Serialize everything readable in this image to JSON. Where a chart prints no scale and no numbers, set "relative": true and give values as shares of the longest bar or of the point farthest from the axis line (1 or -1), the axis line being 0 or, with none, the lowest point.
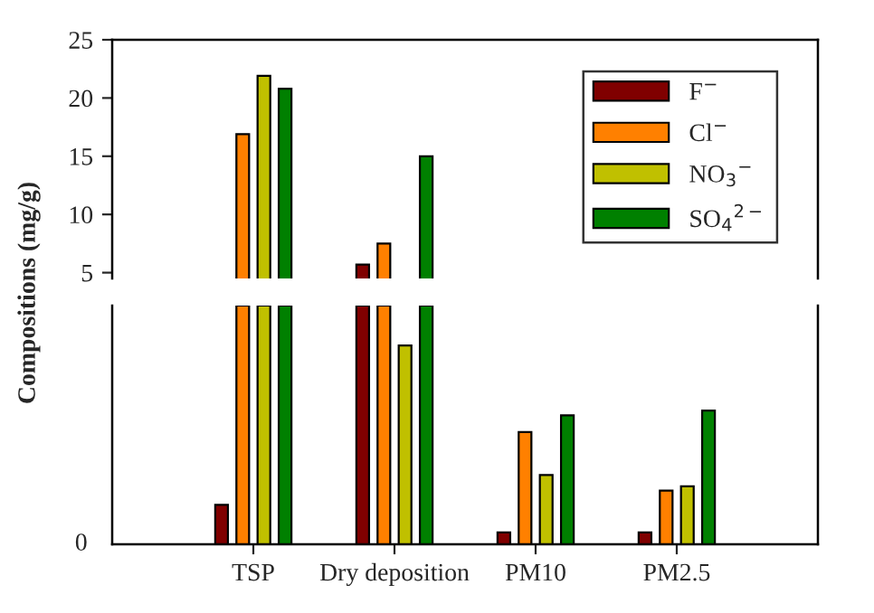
{
  "chart_data": [
    {
      "type": "bar",
      "ylabel": "Compositions (mg/g)",
      "categories": [
        null,
        null,
        null,
        null
      ],
      "series": [
        {
          "name": "F$^{−}$",
          "color": "#800000",
          "values": [
            null,
            5.7,
            null,
            null
          ]
        },
        {
          "name": "Cl$^{−}$",
          "color": "#ff8000",
          "values": [
            16.9,
            7.5,
            null,
            null
          ]
        },
        {
          "name": "NO$_{3}$$^{−}$",
          "color": "#c0c000",
          "values": [
            21.9,
            null,
            null,
            null
          ]
        },
        {
          "name": "SO$_{4}$$^{2−}$",
          "color": "#008000",
          "values": [
            20.8,
            15,
            null,
            null
          ]
        }
      ],
      "ylim": [
        4.5,
        25
      ],
      "yticks": [
        5,
        10,
        15,
        20,
        25
      ],
      "tick_labels": "y",
      "legend": "top right",
      "grid": false
    },
    {
      "type": "bar",
      "relative": true,
      "categories": [
        "TSP",
        "Dry deposition",
        "PM10",
        "PM2.5"
      ],
      "series": [
        {
          "color": "#800000",
          "values": [
            0.165,
            1,
            0.05,
            0.05
          ]
        },
        {
          "color": "#ff8000",
          "values": [
            1,
            1,
            0.47,
            0.225
          ]
        },
        {
          "color": "#c0c000",
          "values": [
            1,
            0.833,
            0.29,
            0.243
          ]
        },
        {
          "color": "#008000",
          "values": [
            1,
            1,
            0.54,
            0.56
          ]
        }
      ],
      "annotations": [
        "0"
      ],
      "tick_labels": "x",
      "grid": false
    }
  ]
}
